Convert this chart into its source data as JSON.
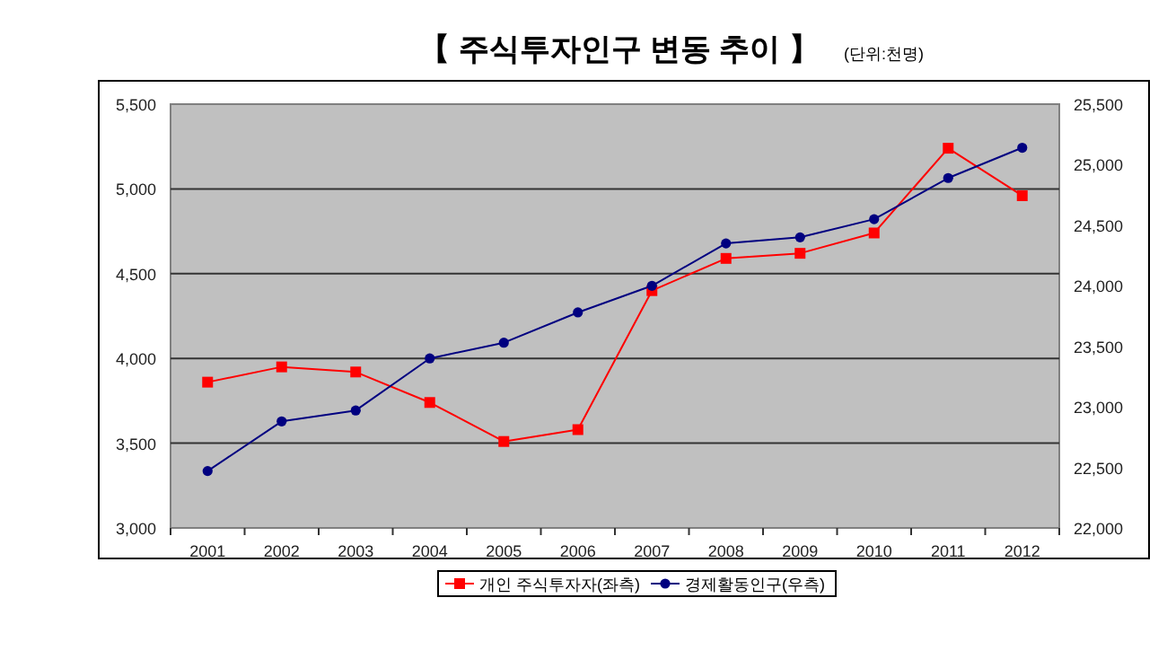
{
  "chart_data": {
    "type": "line",
    "title": "【 주식투자인구 변동 추이 】",
    "subtitle": "(단위:천명)",
    "categories": [
      "2001",
      "2002",
      "2003",
      "2004",
      "2005",
      "2006",
      "2007",
      "2008",
      "2009",
      "2010",
      "2011",
      "2012"
    ],
    "series": [
      {
        "name": "개인 주식투자자(좌측)",
        "color": "#ff0000",
        "marker": "square",
        "values": [
          3860,
          3950,
          3920,
          3740,
          3510,
          3580,
          4400,
          4590,
          4620,
          4740,
          5240,
          4960
        ]
      },
      {
        "name": "경제활동인구(우측)",
        "color": "#000080",
        "marker": "circle",
        "axis": "y2",
        "values": [
          22470,
          22880,
          22970,
          23400,
          23530,
          23780,
          24000,
          24350,
          24400,
          24550,
          24890,
          25140
        ]
      }
    ],
    "ylim": [
      3000,
      5500
    ],
    "yticks": [
      {
        "value": 3000,
        "label": "3,000"
      },
      {
        "value": 3500,
        "label": "3,500"
      },
      {
        "value": 4000,
        "label": "4,000"
      },
      {
        "value": 4500,
        "label": "4,500"
      },
      {
        "value": 5000,
        "label": "5,000"
      },
      {
        "value": 5500,
        "label": "5,500"
      }
    ],
    "y2lim": [
      22000,
      25500
    ],
    "y2ticks": [
      {
        "value": 22000,
        "label": "22,000"
      },
      {
        "value": 22500,
        "label": "22,500"
      },
      {
        "value": 23000,
        "label": "23,000"
      },
      {
        "value": 23500,
        "label": "23,500"
      },
      {
        "value": 24000,
        "label": "24,000"
      },
      {
        "value": 24500,
        "label": "24,500"
      },
      {
        "value": 25000,
        "label": "25,000"
      },
      {
        "value": 25500,
        "label": "25,500"
      }
    ],
    "grid": "y",
    "legend": "bottom",
    "line_style": "solid"
  }
}
